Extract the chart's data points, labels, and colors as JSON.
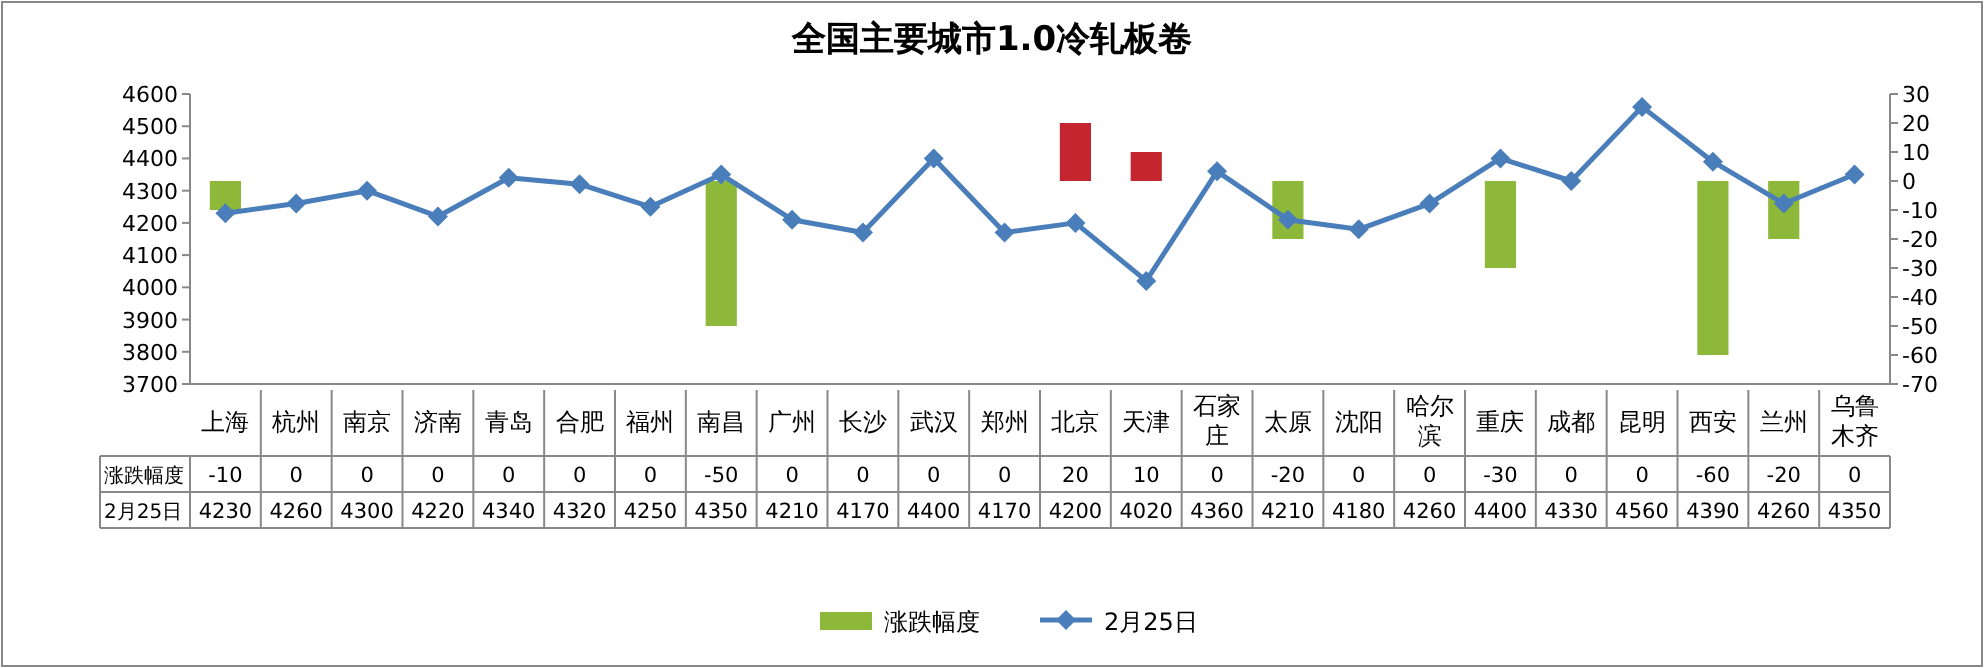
{
  "chart_data": {
    "type": "bar",
    "title": "全国主要城市1.0冷轧板卷",
    "categories": [
      "上海",
      "杭州",
      "南京",
      "济南",
      "青岛",
      "合肥",
      "福州",
      "南昌",
      "广州",
      "长沙",
      "武汉",
      "郑州",
      "北京",
      "天津",
      "石家庄",
      "太原",
      "沈阳",
      "哈尔滨",
      "重庆",
      "成都",
      "昆明",
      "西安",
      "兰州",
      "乌鲁木齐"
    ],
    "series": [
      {
        "name": "涨跌幅度",
        "axis": "y2",
        "color": "#8db83a",
        "colors": [
          "#8db83a",
          "#8db83a",
          "#8db83a",
          "#8db83a",
          "#8db83a",
          "#8db83a",
          "#8db83a",
          "#8db83a",
          "#8db83a",
          "#8db83a",
          "#8db83a",
          "#8db83a",
          "#c3262e",
          "#c3262e",
          "#8db83a",
          "#8db83a",
          "#8db83a",
          "#8db83a",
          "#8db83a",
          "#8db83a",
          "#8db83a",
          "#8db83a",
          "#8db83a",
          "#8db83a"
        ],
        "values": [
          -10,
          0,
          0,
          0,
          0,
          0,
          0,
          -50,
          0,
          0,
          0,
          0,
          20,
          10,
          0,
          -20,
          0,
          0,
          -30,
          0,
          0,
          -60,
          -20,
          0
        ]
      },
      {
        "name": "2月25日",
        "type": "line",
        "axis": "y",
        "color": "#4a7ebb",
        "marker": "diamond",
        "values": [
          4230,
          4260,
          4300,
          4220,
          4340,
          4320,
          4250,
          4350,
          4210,
          4170,
          4400,
          4170,
          4200,
          4020,
          4360,
          4210,
          4180,
          4260,
          4400,
          4330,
          4560,
          4390,
          4260,
          4350
        ]
      }
    ],
    "ylim": [
      3700,
      4600
    ],
    "yticks": [
      3700,
      3800,
      3900,
      4000,
      4100,
      4200,
      4300,
      4400,
      4500,
      4600
    ],
    "y2lim": [
      -70,
      30
    ],
    "y2ticks": [
      -70,
      -60,
      -50,
      -40,
      -30,
      -20,
      -10,
      0,
      10,
      20,
      30
    ],
    "data_labels": true,
    "legend": "bottom",
    "grid": false
  }
}
